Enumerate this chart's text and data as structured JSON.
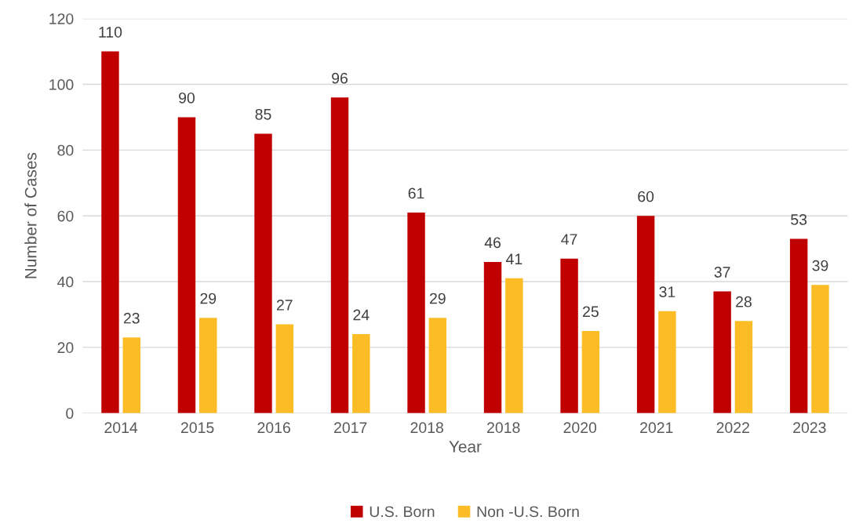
{
  "chart_data": {
    "type": "bar",
    "xlabel": "Year",
    "ylabel": "Number of Cases",
    "categories": [
      "2014",
      "2015",
      "2016",
      "2017",
      "2018",
      "2018",
      "2020",
      "2021",
      "2022",
      "2023"
    ],
    "series": [
      {
        "name": "U.S. Born",
        "color": "#c00000",
        "values": [
          110,
          90,
          85,
          96,
          61,
          46,
          47,
          60,
          37,
          53
        ]
      },
      {
        "name": "Non -U.S. Born",
        "color": "#fbbc25",
        "values": [
          23,
          29,
          27,
          24,
          29,
          41,
          25,
          31,
          28,
          39
        ]
      }
    ],
    "ylim": [
      0,
      120
    ],
    "yticks": [
      0,
      20,
      40,
      60,
      80,
      100,
      120
    ],
    "grid": "y",
    "legend": "bottom",
    "data_labels": true
  }
}
